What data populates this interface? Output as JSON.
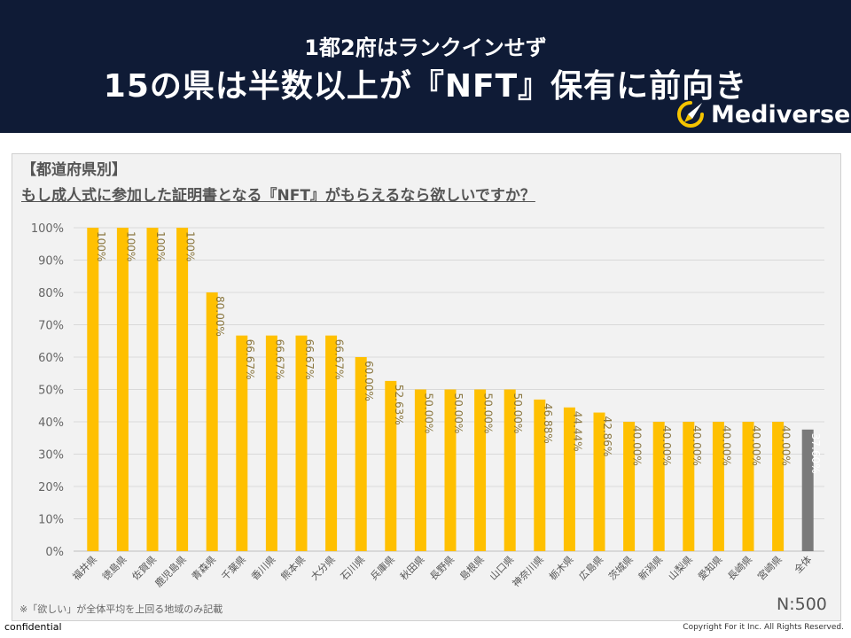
{
  "header": {
    "subtitle": "1都2府はランクインせず",
    "title": "15の県は半数以上が『NFT』保有に前向き",
    "brand": "Mediverse"
  },
  "question": {
    "category": "【都道府県別】",
    "text": "もし成人式に参加した証明書となる『NFT』がもらえるなら欲しいですか？"
  },
  "note": "※「欲しい」が全体平均を上回る地域のみ記載",
  "sample_size": "N:500",
  "footer": {
    "left": "confidential",
    "right": "Copyright For it Inc. All Rights Reserved."
  },
  "colors": {
    "header_bg": "#0f1b36",
    "bar": "#ffc000",
    "bar_total": "#7a7a7a",
    "brand_icon": "#f5c400"
  },
  "chart_data": {
    "type": "bar",
    "title": "もし成人式に参加した証明書となる『NFT』がもらえるなら欲しいですか？",
    "xlabel": "",
    "ylabel": "",
    "ylim": [
      0,
      100
    ],
    "yticks": [
      "0%",
      "10%",
      "20%",
      "30%",
      "40%",
      "50%",
      "60%",
      "70%",
      "80%",
      "90%",
      "100%"
    ],
    "categories": [
      "福井県",
      "徳島県",
      "佐賀県",
      "鹿児島県",
      "青森県",
      "千葉県",
      "香川県",
      "熊本県",
      "大分県",
      "石川県",
      "兵庫県",
      "秋田県",
      "長野県",
      "島根県",
      "山口県",
      "神奈川県",
      "栃木県",
      "広島県",
      "茨城県",
      "新潟県",
      "山梨県",
      "愛知県",
      "長崎県",
      "宮崎県",
      "全体"
    ],
    "values": [
      100,
      100,
      100,
      100,
      80,
      66.67,
      66.67,
      66.67,
      66.67,
      60,
      52.63,
      50,
      50,
      50,
      50,
      46.88,
      44.44,
      42.86,
      40,
      40,
      40,
      40,
      40,
      40,
      37.6
    ],
    "labels": [
      "100%",
      "100%",
      "100%",
      "100%",
      "80.00%",
      "66.67%",
      "66.67%",
      "66.67%",
      "66.67%",
      "60.00%",
      "52.63%",
      "50.00%",
      "50.00%",
      "50.00%",
      "50.00%",
      "46.88%",
      "44.44%",
      "42.86%",
      "40.00%",
      "40.00%",
      "40.00%",
      "40.00%",
      "40.00%",
      "40.00%",
      "37.60%"
    ],
    "grid": true,
    "legend": "none"
  }
}
